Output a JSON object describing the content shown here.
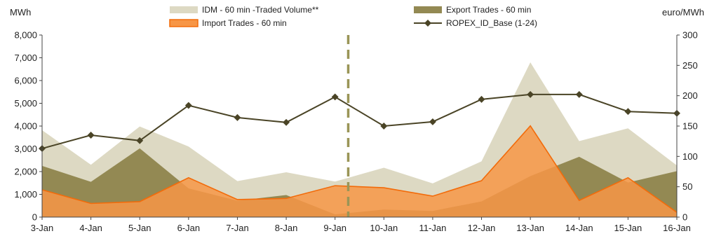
{
  "chart_data": {
    "type": "area",
    "title": "",
    "xlabel": "",
    "ylabel_left": "MWh",
    "ylabel_right": "euro/MWh",
    "ylim_left": [
      0,
      8000
    ],
    "ylim_right": [
      0,
      300
    ],
    "yticks_left": [
      "0",
      "1,000",
      "2,000",
      "3,000",
      "4,000",
      "5,000",
      "6,000",
      "7,000",
      "8,000"
    ],
    "yticks_right": [
      "0",
      "50",
      "100",
      "150",
      "200",
      "250",
      "300"
    ],
    "categories": [
      "3-Jan",
      "4-Jan",
      "5-Jan",
      "6-Jan",
      "7-Jan",
      "8-Jan",
      "9-Jan",
      "10-Jan",
      "11-Jan",
      "12-Jan",
      "13-Jan",
      "14-Jan",
      "15-Jan",
      "16-Jan"
    ],
    "grid": false,
    "legend_position": "top",
    "series": [
      {
        "name": "IDM - 60 min -Traded Volume**",
        "type": "area",
        "axis": "left",
        "color": "#ddd9c3",
        "values": [
          3820,
          2300,
          3980,
          3100,
          1580,
          1970,
          1560,
          2170,
          1480,
          2450,
          6800,
          3340,
          3900,
          2270
        ]
      },
      {
        "name": "Export Trades - 60 min",
        "type": "area",
        "axis": "left",
        "color": "#938953",
        "values": [
          2250,
          1550,
          3020,
          1260,
          720,
          970,
          120,
          330,
          270,
          690,
          1800,
          2650,
          1520,
          2020
        ]
      },
      {
        "name": "Import Trades - 60 min",
        "type": "area",
        "axis": "left",
        "color": "#f79646",
        "stroke": "#f26b0a",
        "values": [
          1200,
          600,
          680,
          1730,
          770,
          820,
          1380,
          1290,
          920,
          1600,
          4010,
          730,
          1730,
          210
        ]
      },
      {
        "name": "ROPEX_ID_Base (1-24)",
        "type": "line",
        "axis": "right",
        "color": "#4a4426",
        "values": [
          113,
          135,
          126,
          184,
          164,
          156,
          198,
          150,
          157,
          194,
          202,
          202,
          174,
          171
        ]
      }
    ],
    "annotations": [
      {
        "type": "vertical-dashed-line",
        "between": [
          "9-Jan",
          "10-Jan"
        ],
        "color": "#9a9557"
      }
    ]
  }
}
